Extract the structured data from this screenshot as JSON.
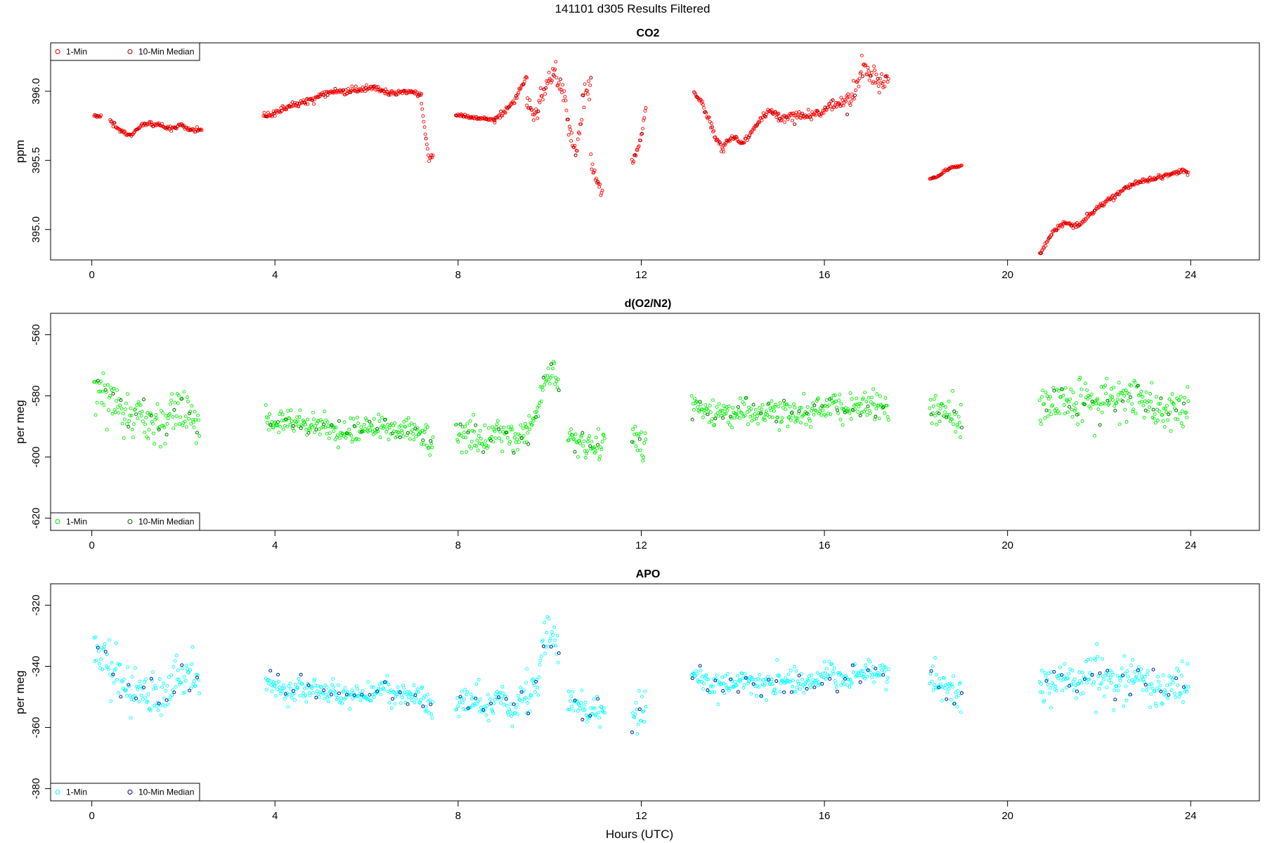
{
  "figure": {
    "title": "141101   d305   Results Filtered",
    "xlabel": "Hours (UTC)"
  },
  "colors": {
    "co2_1min": "#ff0000",
    "co2_median": "#8b0000",
    "o2_1min": "#00ee00",
    "o2_median": "#006400",
    "apo_1min": "#00ffff",
    "apo_median": "#00008b"
  },
  "chart_data": [
    {
      "type": "scatter",
      "title": "CO2",
      "xlabel": "",
      "ylabel": "ppm",
      "xlim": [
        -0.9,
        25.5
      ],
      "ylim": [
        394.78,
        396.35
      ],
      "x_ticks": [
        0,
        4,
        8,
        12,
        16,
        20,
        24
      ],
      "y_ticks": [
        395.0,
        395.5,
        396.0
      ],
      "y_tick_labels": [
        "395.0",
        "395.5",
        "396.0"
      ],
      "legend": {
        "position": "top-left",
        "entries": [
          "1-Min",
          "10-Min Median"
        ]
      },
      "grid": false,
      "series": [
        {
          "name": "1-Min",
          "segments": [
            {
              "x_range": [
                0.05,
                0.2
              ],
              "y": [
                395.82,
                395.82
              ],
              "noise": 0.01
            },
            {
              "x_range": [
                0.4,
                2.4
              ],
              "y": [
                395.78,
                395.72,
                395.68,
                395.75,
                395.77,
                395.75,
                395.73,
                395.75,
                395.72,
                395.72
              ],
              "noise": 0.015
            },
            {
              "x_range": [
                3.75,
                7.2
              ],
              "y": [
                395.82,
                395.85,
                395.9,
                395.93,
                395.97,
                396.0,
                396.0,
                396.02,
                396.02,
                395.98,
                396.0,
                395.98
              ],
              "noise": 0.02
            },
            {
              "x_range": [
                7.2,
                7.45
              ],
              "y": [
                395.9,
                395.7,
                395.5,
                395.55
              ],
              "noise": 0.02
            },
            {
              "x_range": [
                7.95,
                8.8
              ],
              "y": [
                395.83,
                395.82,
                395.81,
                395.8,
                395.79
              ],
              "noise": 0.01
            },
            {
              "x_range": [
                8.8,
                9.5
              ],
              "y": [
                395.8,
                395.85,
                395.95,
                396.1
              ],
              "noise": 0.02
            },
            {
              "x_range": [
                9.5,
                10.1
              ],
              "y": [
                395.95,
                395.8,
                395.92,
                396.05,
                396.12
              ],
              "noise": 0.06
            },
            {
              "x_range": [
                10.1,
                10.9
              ],
              "y": [
                396.15,
                396.05,
                395.75,
                395.55,
                395.95,
                396.05
              ],
              "noise": 0.08
            },
            {
              "x_range": [
                10.9,
                11.15
              ],
              "y": [
                395.5,
                395.35,
                395.28
              ],
              "noise": 0.04
            },
            {
              "x_range": [
                11.8,
                12.1
              ],
              "y": [
                395.5,
                395.6,
                395.88
              ],
              "noise": 0.03
            },
            {
              "x_range": [
                13.15,
                13.8
              ],
              "y": [
                395.99,
                395.93,
                395.8,
                395.65,
                395.57
              ],
              "noise": 0.02
            },
            {
              "x_range": [
                13.8,
                15.0
              ],
              "y": [
                395.62,
                395.67,
                395.62,
                395.7,
                395.8,
                395.86,
                395.83
              ],
              "noise": 0.02
            },
            {
              "x_range": [
                15.0,
                16.5
              ],
              "y": [
                395.8,
                395.82,
                395.82,
                395.85,
                395.9,
                395.93
              ],
              "noise": 0.03
            },
            {
              "x_range": [
                16.5,
                17.4
              ],
              "y": [
                395.9,
                396.0,
                396.2,
                396.1,
                396.05,
                396.12
              ],
              "noise": 0.07
            },
            {
              "x_range": [
                18.3,
                19.0
              ],
              "y": [
                395.37,
                395.38,
                395.43,
                395.45,
                395.46
              ],
              "noise": 0.008
            },
            {
              "x_range": [
                20.7,
                23.95
              ],
              "y": [
                394.82,
                394.98,
                395.05,
                395.02,
                395.1,
                395.18,
                395.24,
                395.3,
                395.35,
                395.36,
                395.38,
                395.42,
                395.41
              ],
              "noise": 0.015
            }
          ]
        },
        {
          "name": "10-Min Median",
          "sampling": "every 10th 1-Min point"
        }
      ]
    },
    {
      "type": "scatter",
      "title": "d(O2/N2)",
      "xlabel": "",
      "ylabel": "per meg",
      "xlim": [
        -0.9,
        25.5
      ],
      "ylim": [
        -624,
        -553
      ],
      "x_ticks": [
        0,
        4,
        8,
        12,
        16,
        20,
        24
      ],
      "y_ticks": [
        -620,
        -600,
        -580,
        -560
      ],
      "y_tick_labels": [
        "-620",
        "-600",
        "-580",
        "-560"
      ],
      "legend": {
        "position": "bottom-left",
        "entries": [
          "1-Min",
          "10-Min Median"
        ]
      },
      "grid": false,
      "series": [
        {
          "name": "1-Min",
          "segments": [
            {
              "x_range": [
                0.05,
                2.35
              ],
              "y": [
                -578,
                -578,
                -582,
                -588,
                -586,
                -590,
                -588,
                -584,
                -584,
                -588
              ],
              "noise": 6
            },
            {
              "x_range": [
                3.8,
                7.45
              ],
              "y": [
                -588,
                -589,
                -589,
                -590,
                -591,
                -592,
                -591,
                -590,
                -591,
                -592,
                -596
              ],
              "noise": 3.5
            },
            {
              "x_range": [
                7.95,
                9.5
              ],
              "y": [
                -594,
                -591,
                -596,
                -592,
                -596,
                -590
              ],
              "noise": 5
            },
            {
              "x_range": [
                9.5,
                10.2
              ],
              "y": [
                -594,
                -584,
                -570,
                -577
              ],
              "noise": 5
            },
            {
              "x_range": [
                10.4,
                11.2
              ],
              "y": [
                -592,
                -595,
                -597,
                -596
              ],
              "noise": 4
            },
            {
              "x_range": [
                11.8,
                12.1
              ],
              "y": [
                -596,
                -595,
                -592
              ],
              "noise": 7
            },
            {
              "x_range": [
                13.1,
                17.4
              ],
              "y": [
                -582,
                -586,
                -586,
                -585,
                -586,
                -585,
                -586,
                -583,
                -585,
                -583,
                -584
              ],
              "noise": 3.5
            },
            {
              "x_range": [
                18.3,
                19.0
              ],
              "y": [
                -584,
                -584,
                -586,
                -590
              ],
              "noise": 5
            },
            {
              "x_range": [
                20.7,
                23.95
              ],
              "y": [
                -584,
                -582,
                -583,
                -580,
                -582,
                -581,
                -580,
                -586,
                -585,
                -584
              ],
              "noise": 6
            }
          ]
        },
        {
          "name": "10-Min Median",
          "sampling": "every 10th 1-Min point"
        }
      ]
    },
    {
      "type": "scatter",
      "title": "APO",
      "xlabel": "Hours (UTC)",
      "ylabel": "per meg",
      "xlim": [
        -0.9,
        25.5
      ],
      "ylim": [
        -384,
        -313
      ],
      "x_ticks": [
        0,
        4,
        8,
        12,
        16,
        20,
        24
      ],
      "y_ticks": [
        -380,
        -360,
        -340,
        -320
      ],
      "y_tick_labels": [
        "-380",
        "-360",
        "-340",
        "-320"
      ],
      "legend": {
        "position": "bottom-left",
        "entries": [
          "1-Min",
          "10-Min Median"
        ]
      },
      "grid": false,
      "series": [
        {
          "name": "1-Min",
          "segments": [
            {
              "x_range": [
                0.05,
                2.35
              ],
              "y": [
                -336,
                -338,
                -342,
                -348,
                -347,
                -351,
                -348,
                -344,
                -343,
                -347
              ],
              "noise": 6
            },
            {
              "x_range": [
                3.8,
                7.45
              ],
              "y": [
                -345,
                -348,
                -347,
                -348,
                -349,
                -350,
                -349,
                -348,
                -349,
                -350,
                -355
              ],
              "noise": 3.5
            },
            {
              "x_range": [
                7.95,
                9.5
              ],
              "y": [
                -353,
                -350,
                -355,
                -350,
                -354,
                -348
              ],
              "noise": 5
            },
            {
              "x_range": [
                9.5,
                10.2
              ],
              "y": [
                -352,
                -342,
                -328,
                -335
              ],
              "noise": 5
            },
            {
              "x_range": [
                10.4,
                11.2
              ],
              "y": [
                -350,
                -353,
                -355,
                -354
              ],
              "noise": 4
            },
            {
              "x_range": [
                11.8,
                12.1
              ],
              "y": [
                -355,
                -354,
                -350
              ],
              "noise": 7
            },
            {
              "x_range": [
                13.1,
                17.4
              ],
              "y": [
                -342,
                -346,
                -346,
                -345,
                -346,
                -345,
                -345,
                -342,
                -344,
                -341,
                -342
              ],
              "noise": 3.5
            },
            {
              "x_range": [
                18.3,
                19.0
              ],
              "y": [
                -344,
                -345,
                -347,
                -352
              ],
              "noise": 5
            },
            {
              "x_range": [
                20.7,
                23.95
              ],
              "y": [
                -347,
                -345,
                -346,
                -343,
                -345,
                -344,
                -343,
                -349,
                -347,
                -346
              ],
              "noise": 6
            }
          ]
        },
        {
          "name": "10-Min Median",
          "sampling": "every 10th 1-Min point"
        }
      ]
    }
  ]
}
